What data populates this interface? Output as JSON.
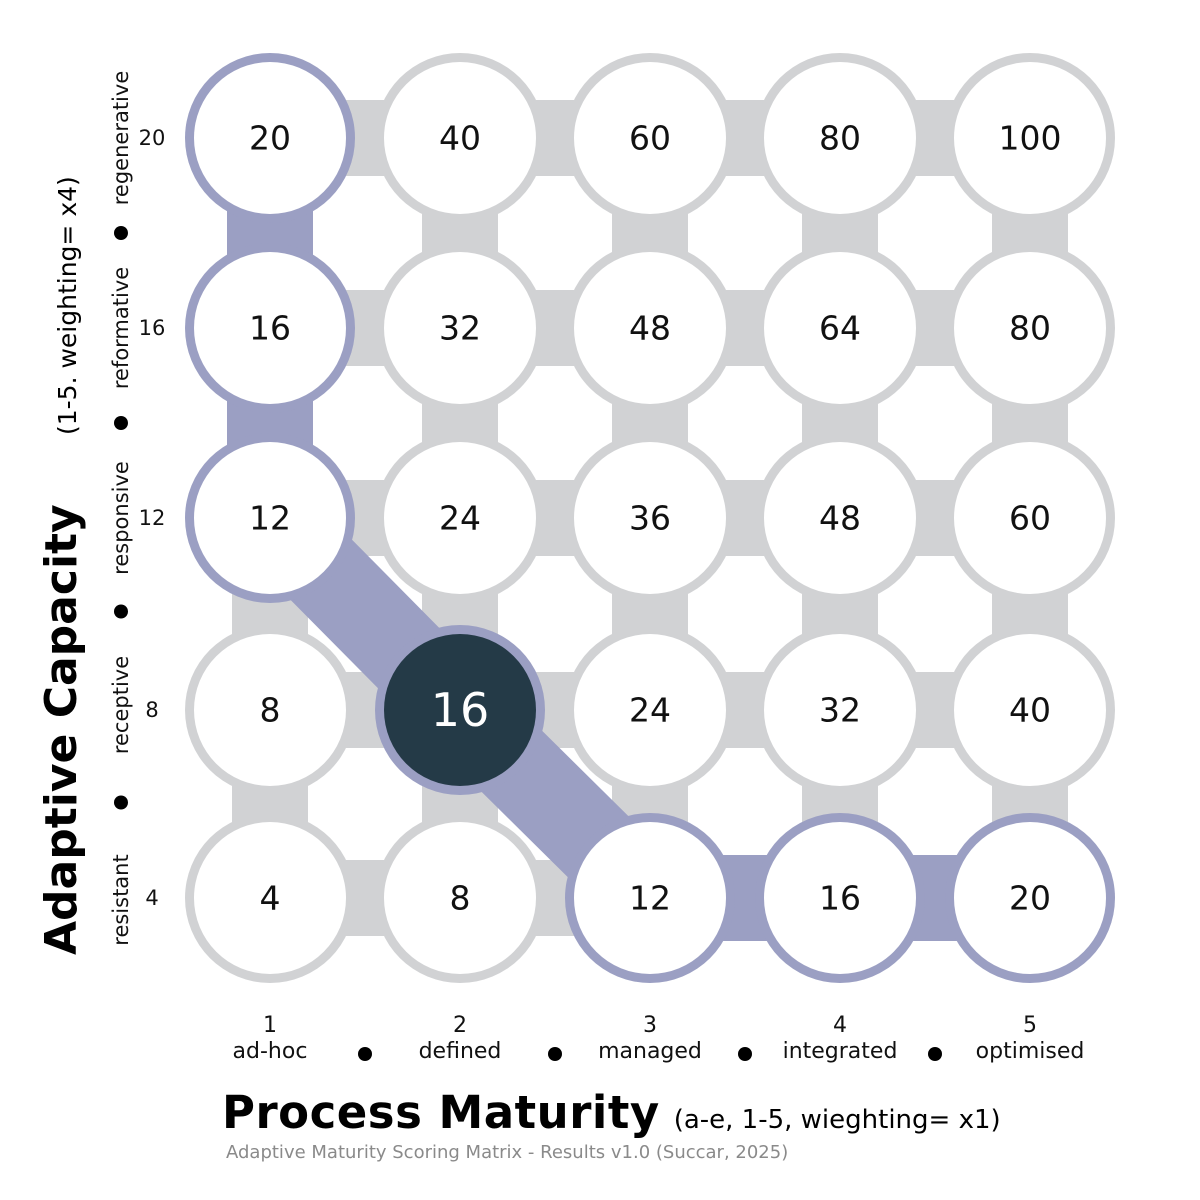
{
  "chart_data": {
    "type": "heatmap",
    "title": "",
    "xlabel": "Process Maturity",
    "xlabel_note": "(a-e, 1-5, wieghting= x1)",
    "ylabel": "Adaptive Capacity",
    "ylabel_note": "(1-5. weighting= x4)",
    "x_levels": [
      {
        "num": "1",
        "label": "ad-hoc"
      },
      {
        "num": "2",
        "label": "defined"
      },
      {
        "num": "3",
        "label": "managed"
      },
      {
        "num": "4",
        "label": "integrated"
      },
      {
        "num": "5",
        "label": "optimised"
      }
    ],
    "y_levels": [
      {
        "value": "4",
        "label": "resistant"
      },
      {
        "value": "8",
        "label": "receptive"
      },
      {
        "value": "12",
        "label": "responsive"
      },
      {
        "value": "16",
        "label": "reformative"
      },
      {
        "value": "20",
        "label": "regenerative"
      }
    ],
    "rows": [
      {
        "y": 20,
        "values": [
          20,
          40,
          60,
          80,
          100
        ]
      },
      {
        "y": 16,
        "values": [
          16,
          32,
          48,
          64,
          80
        ]
      },
      {
        "y": 12,
        "values": [
          12,
          24,
          36,
          48,
          60
        ]
      },
      {
        "y": 8,
        "values": [
          8,
          16,
          24,
          32,
          40
        ]
      },
      {
        "y": 4,
        "values": [
          4,
          8,
          12,
          16,
          20
        ]
      }
    ],
    "highlighted_score": {
      "x": 2,
      "y": 8,
      "value": 16
    },
    "equal_score_path": [
      [
        1,
        20
      ],
      [
        1,
        16
      ],
      [
        1,
        12
      ],
      [
        2,
        8
      ],
      [
        3,
        4
      ],
      [
        4,
        4
      ],
      [
        5,
        4
      ]
    ],
    "colors": {
      "cell_ring": "#d1d2d4",
      "highlight_path": "#9b9fc3",
      "current_cell": "#243a47",
      "cell_fill": "#ffffff"
    }
  },
  "caption": "Adaptive Maturity Scoring Matrix - Results v1.0 (Succar, 2025)"
}
